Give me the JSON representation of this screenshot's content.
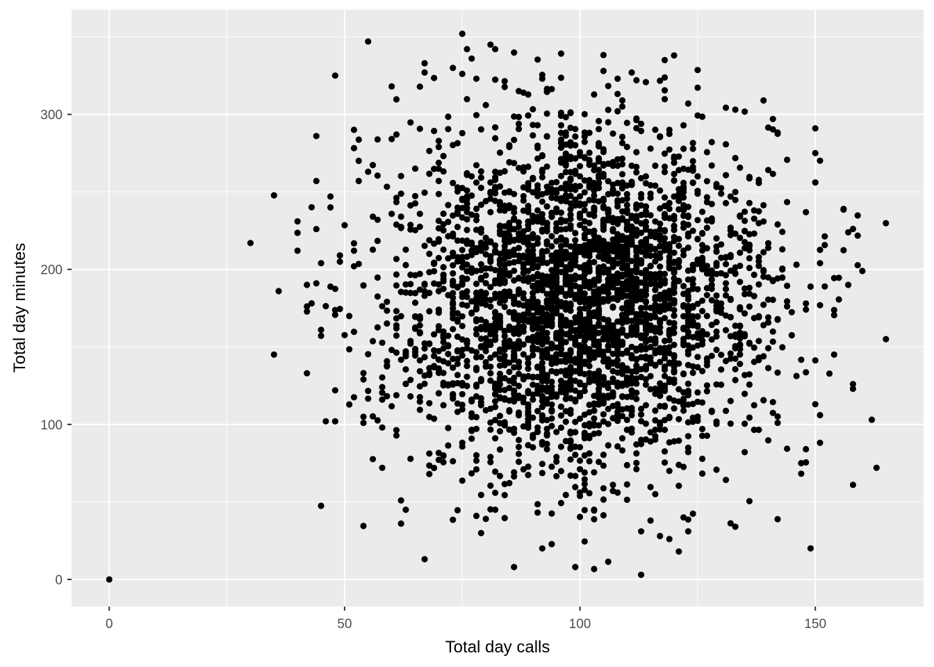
{
  "chart_data": {
    "type": "scatter",
    "title": "",
    "xlabel": "Total day calls",
    "ylabel": "Total day minutes",
    "xlim": [
      -8,
      173
    ],
    "ylim": [
      -17.5,
      367.5
    ],
    "x_ticks": [
      0,
      50,
      100,
      150
    ],
    "y_ticks": [
      0,
      100,
      200,
      300
    ],
    "x_minor_ticks": [
      25,
      75,
      125
    ],
    "y_minor_ticks": [
      50,
      150,
      250,
      350
    ],
    "grid": true,
    "legend": "none",
    "colors": {
      "panel": "#ebebeb",
      "grid": "#ffffff",
      "point": "#000000",
      "tick_text": "#4d4d4d",
      "title_text": "#000000"
    },
    "point_generation": {
      "count": 3300,
      "x_mean": 100.4,
      "x_sd": 20.1,
      "y_mean": 179.8,
      "y_sd": 54.5,
      "x_range": [
        30,
        165
      ],
      "y_range": [
        2,
        351
      ]
    },
    "points": [
      [
        0,
        0
      ],
      [
        30,
        217
      ],
      [
        35,
        145
      ],
      [
        36,
        186
      ],
      [
        40,
        231
      ],
      [
        40,
        212
      ],
      [
        42,
        190
      ],
      [
        42,
        133
      ],
      [
        44,
        191
      ],
      [
        44,
        286
      ],
      [
        44,
        257
      ],
      [
        45,
        204
      ],
      [
        45,
        161
      ],
      [
        47,
        247
      ],
      [
        47,
        240
      ],
      [
        48,
        122
      ],
      [
        48,
        102
      ],
      [
        48,
        325
      ],
      [
        49,
        205
      ],
      [
        49,
        209
      ],
      [
        52,
        290
      ],
      [
        52,
        202
      ],
      [
        53,
        270
      ],
      [
        53,
        257
      ],
      [
        54,
        101
      ],
      [
        54,
        129
      ],
      [
        55,
        263
      ],
      [
        55,
        347
      ],
      [
        57,
        232
      ],
      [
        58,
        98
      ],
      [
        58,
        72
      ],
      [
        60,
        318
      ],
      [
        61,
        287
      ],
      [
        62,
        51
      ],
      [
        62,
        36
      ],
      [
        63,
        45
      ],
      [
        67,
        13
      ],
      [
        67,
        333
      ],
      [
        67,
        327
      ],
      [
        68,
        68
      ],
      [
        73,
        330
      ],
      [
        75,
        352
      ],
      [
        77,
        336
      ],
      [
        78,
        41
      ],
      [
        80,
        39
      ],
      [
        80,
        306
      ],
      [
        81,
        345
      ],
      [
        86,
        8
      ],
      [
        87,
        315
      ],
      [
        88,
        314
      ],
      [
        92,
        20
      ],
      [
        92,
        323
      ],
      [
        99,
        8
      ],
      [
        113,
        3
      ],
      [
        113,
        31
      ],
      [
        115,
        38
      ],
      [
        117,
        28
      ],
      [
        118,
        335
      ],
      [
        119,
        26
      ],
      [
        120,
        338
      ],
      [
        121,
        18
      ],
      [
        123,
        31
      ],
      [
        105,
        328
      ],
      [
        108,
        323
      ],
      [
        111,
        327
      ],
      [
        112,
        322
      ],
      [
        123,
        307
      ],
      [
        133,
        303
      ],
      [
        139,
        309
      ],
      [
        141,
        297
      ],
      [
        133,
        34
      ],
      [
        149,
        20
      ],
      [
        150,
        291
      ],
      [
        150,
        275
      ],
      [
        152,
        189
      ],
      [
        156,
        239
      ],
      [
        157,
        190
      ],
      [
        158,
        126
      ],
      [
        158,
        123
      ],
      [
        158,
        61
      ],
      [
        160,
        199
      ],
      [
        163,
        72
      ],
      [
        165,
        155
      ],
      [
        148,
        84
      ],
      [
        150,
        113
      ],
      [
        151,
        106
      ]
    ]
  }
}
